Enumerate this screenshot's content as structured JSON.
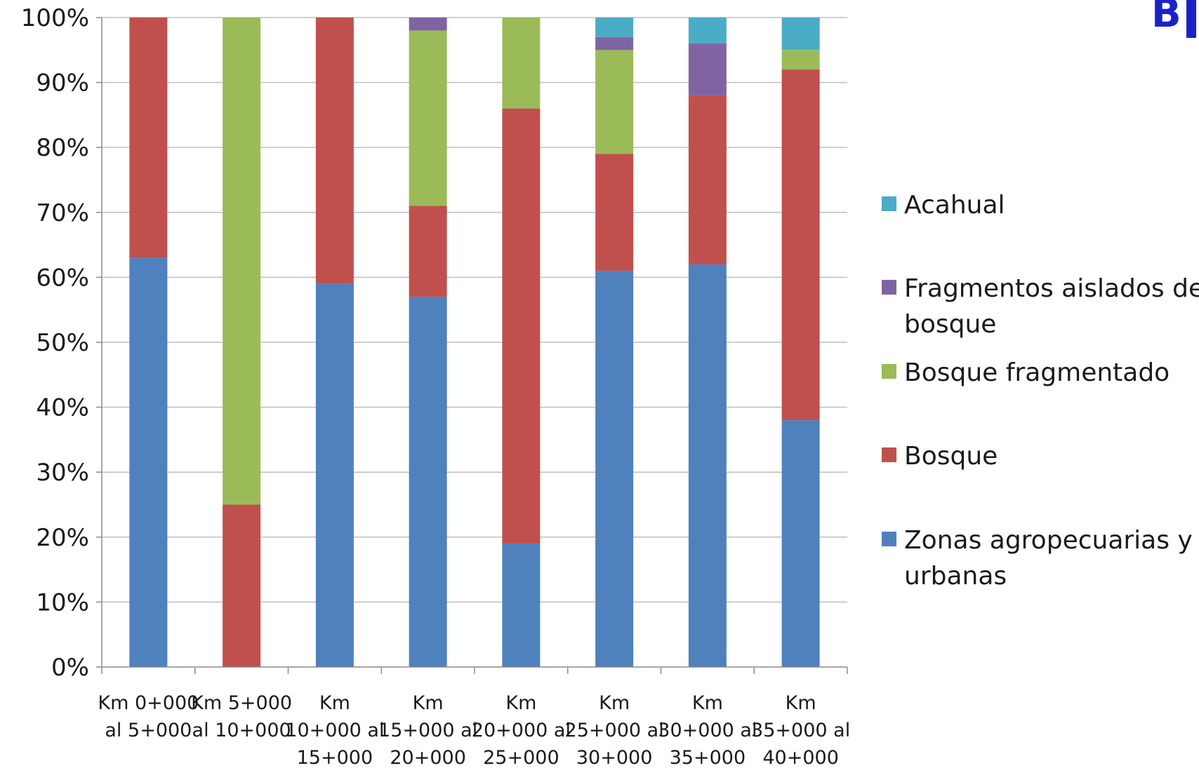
{
  "chart_data": {
    "type": "bar",
    "stacked": true,
    "percent": true,
    "title": "",
    "xlabel": "",
    "ylabel": "",
    "ylim": [
      0,
      100
    ],
    "yticks": [
      "0%",
      "10%",
      "20%",
      "30%",
      "40%",
      "50%",
      "60%",
      "70%",
      "80%",
      "90%",
      "100%"
    ],
    "grid": true,
    "legend_position": "right",
    "categories": [
      [
        "Km 0+000",
        "al 5+000"
      ],
      [
        "Km 5+000",
        "al 10+000"
      ],
      [
        "Km",
        "10+000 al",
        "15+000"
      ],
      [
        "Km",
        "15+000 al",
        "20+000"
      ],
      [
        "Km",
        "20+000 al",
        "25+000"
      ],
      [
        "Km",
        "25+000 al",
        "30+000"
      ],
      [
        "Km",
        "30+000 al",
        "35+000"
      ],
      [
        "Km",
        "35+000 al",
        "40+000"
      ]
    ],
    "series": [
      {
        "name": "Zonas agropecuarias y urbanas",
        "legend_lines": [
          "Zonas agropecuarias y",
          "urbanas"
        ],
        "color": "#4f81bd",
        "values": [
          63,
          0,
          59,
          57,
          19,
          61,
          62,
          38
        ]
      },
      {
        "name": "Bosque",
        "legend_lines": [
          "Bosque"
        ],
        "color": "#c0504d",
        "values": [
          37,
          25,
          41,
          14,
          67,
          18,
          26,
          54
        ]
      },
      {
        "name": "Bosque fragmentado",
        "legend_lines": [
          "Bosque fragmentado"
        ],
        "color": "#9bbb59",
        "values": [
          0,
          75,
          0,
          27,
          14,
          16,
          0,
          3
        ]
      },
      {
        "name": "Fragmentos aislados de bosque",
        "legend_lines": [
          "Fragmentos aislados de",
          "bosque"
        ],
        "color": "#8064a2",
        "values": [
          0,
          0,
          0,
          2,
          0,
          2,
          8,
          0
        ]
      },
      {
        "name": "Acahual",
        "legend_lines": [
          "Acahual"
        ],
        "color": "#4bacc6",
        "values": [
          0,
          0,
          0,
          0,
          0,
          3,
          4,
          5
        ]
      }
    ],
    "legend_order": [
      "Acahual",
      "Fragmentos aislados de bosque",
      "Bosque fragmentado",
      "Bosque",
      "Zonas agropecuarias y urbanas"
    ],
    "gridline_color": "#bfbfbf",
    "axis_color": "#8c8c8c"
  },
  "logo": {
    "text": "B",
    "color": "#1a22c8"
  }
}
